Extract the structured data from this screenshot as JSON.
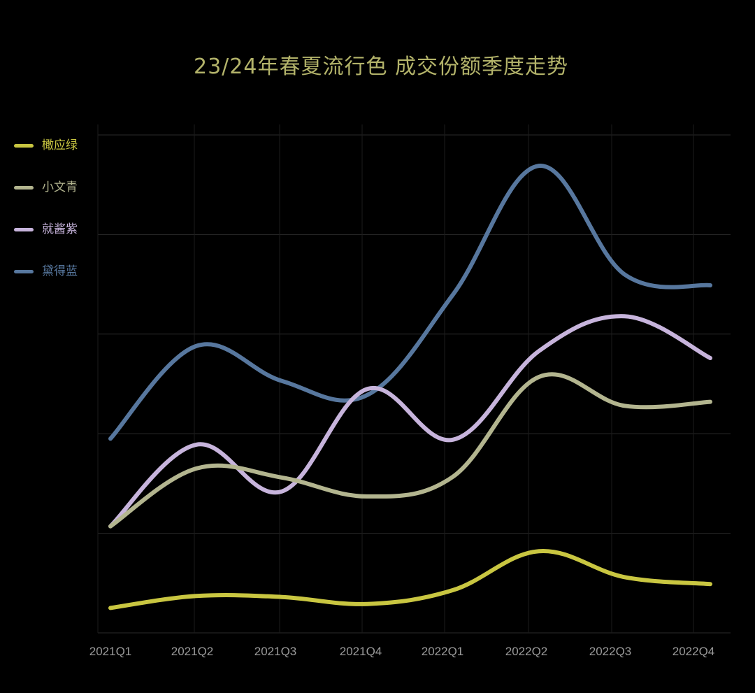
{
  "chart_data": {
    "type": "line",
    "title": "23/24年春夏流行色 成交份额季度走势",
    "xlabel": "",
    "ylabel": "",
    "categories": [
      "2021Q1",
      "2021Q2",
      "2021Q3",
      "2021Q4",
      "2022Q1",
      "2022Q2",
      "2022Q3",
      "2022Q4"
    ],
    "ylim": [
      0,
      5
    ],
    "grid": true,
    "legend_position": "left",
    "series": [
      {
        "name": "橄应绿",
        "color": "#c9c641",
        "values": [
          0.25,
          0.37,
          0.36,
          0.29,
          0.43,
          0.82,
          0.56,
          0.49
        ]
      },
      {
        "name": "小文青",
        "color": "#b3b58f",
        "values": [
          1.07,
          1.65,
          1.56,
          1.37,
          1.57,
          2.57,
          2.28,
          2.32
        ]
      },
      {
        "name": "就酱紫",
        "color": "#c7b4dc",
        "values": [
          1.07,
          1.89,
          1.42,
          2.45,
          1.94,
          2.83,
          3.18,
          2.76
        ]
      },
      {
        "name": "黛得蓝",
        "color": "#57779e",
        "values": [
          1.95,
          2.88,
          2.53,
          2.39,
          3.4,
          4.69,
          3.6,
          3.49
        ]
      }
    ]
  }
}
